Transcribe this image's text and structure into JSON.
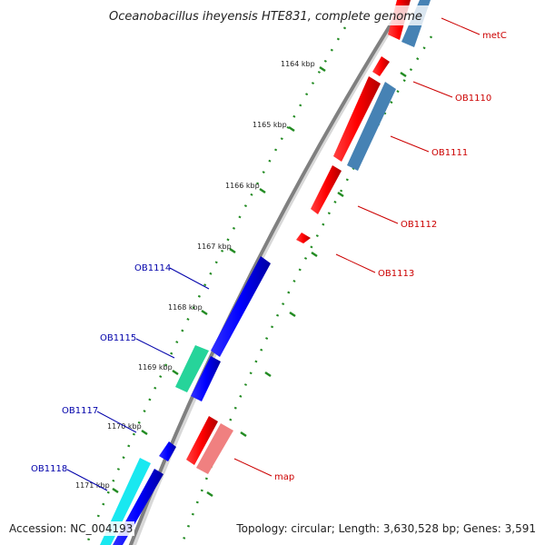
{
  "title": "Oceanobacillus iheyensis HTE831, complete genome",
  "accession_text": "Accession: NC_004193",
  "topology_text": "Topology: circular; Length: 3,630,528 bp; Genes: 3,591",
  "colors": {
    "backbone": "#808080",
    "tick": "#228b22",
    "forward_cds": "#0000ff",
    "reverse_cds": "#ff0000",
    "forward_label": "#0000aa",
    "reverse_label": "#cc0000",
    "blast_forward_a": "#00cc88",
    "blast_forward_b": "#00e5ee",
    "blast_reverse_a": "#4682b4",
    "blast_reverse_b": "#f08080"
  },
  "kbp_ticks": [
    "1164 kbp",
    "1165 kbp",
    "1166 kbp",
    "1167 kbp",
    "1168 kbp",
    "1169 kbp",
    "1170 kbp",
    "1171 kbp"
  ],
  "genes": [
    {
      "name": "metC",
      "strand": "reverse"
    },
    {
      "name": "OB1110",
      "strand": "reverse"
    },
    {
      "name": "OB1111",
      "strand": "reverse"
    },
    {
      "name": "OB1112",
      "strand": "reverse"
    },
    {
      "name": "OB1113",
      "strand": "reverse"
    },
    {
      "name": "OB1114",
      "strand": "forward"
    },
    {
      "name": "OB1115",
      "strand": "forward"
    },
    {
      "name": "OB1117",
      "strand": "forward"
    },
    {
      "name": "OB1118",
      "strand": "forward"
    },
    {
      "name": "map",
      "strand": "reverse"
    }
  ]
}
